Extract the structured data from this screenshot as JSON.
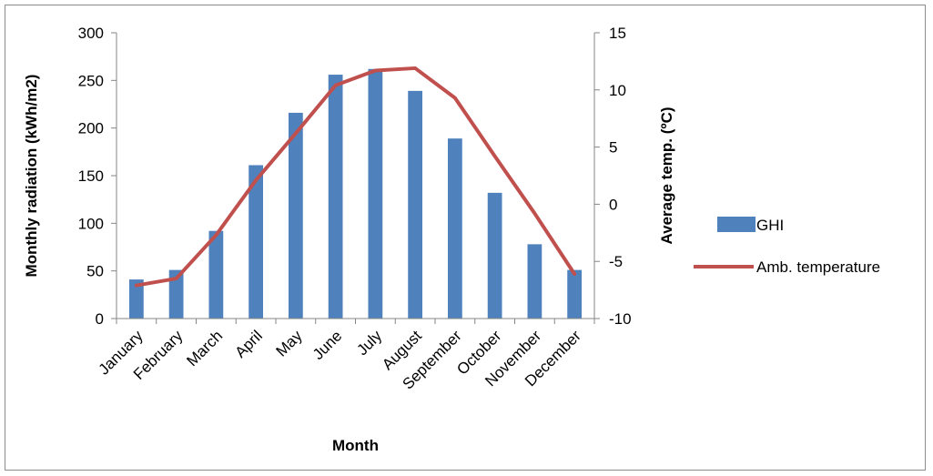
{
  "chart_data": {
    "type": "bar",
    "categories": [
      "January",
      "February",
      "March",
      "April",
      "May",
      "June",
      "July",
      "August",
      "September",
      "October",
      "November",
      "December"
    ],
    "series": [
      {
        "name": "GHI",
        "type": "bar",
        "axis": "left",
        "color": "#4f81bd",
        "values": [
          41,
          51,
          92,
          161,
          216,
          256,
          262,
          239,
          189,
          132,
          78,
          51
        ]
      },
      {
        "name": "Amb. temperature",
        "type": "line",
        "axis": "right",
        "color": "#c0504d",
        "values": [
          -7.1,
          -6.5,
          -2.7,
          2.1,
          6.2,
          10.4,
          11.7,
          11.9,
          9.3,
          4.2,
          -0.8,
          -6.1
        ]
      }
    ],
    "xlabel": "Month",
    "ylabel": "Monthly radiation  (kWh/m2)",
    "y2label": "Average temp. (ºC)",
    "ylim": [
      0,
      300
    ],
    "y2lim": [
      -10,
      15
    ],
    "yticks": [
      0,
      50,
      100,
      150,
      200,
      250,
      300
    ],
    "y2ticks": [
      -10,
      -5,
      0,
      5,
      10,
      15
    ],
    "grid": false,
    "legend": "right"
  }
}
